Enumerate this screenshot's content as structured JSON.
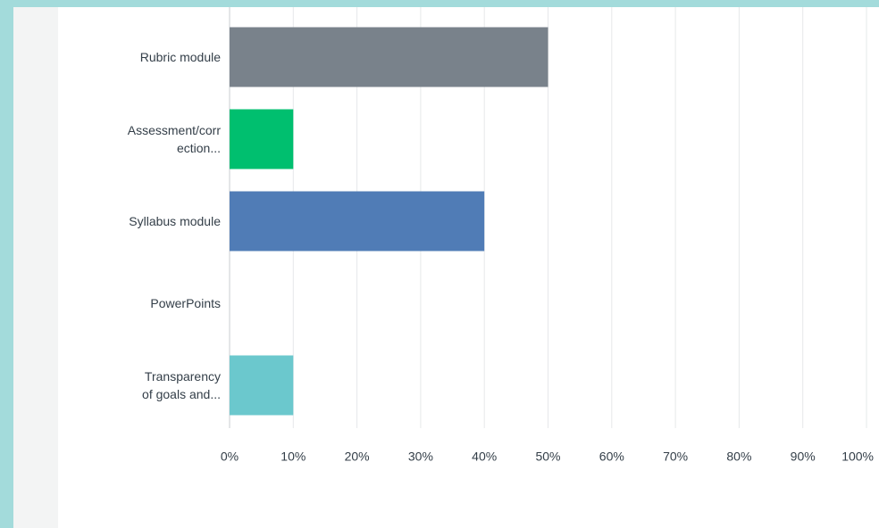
{
  "chart_data": {
    "type": "bar",
    "orientation": "horizontal",
    "categories": [
      "Rubric module",
      "Assessment/corr\nection...",
      "Syllabus module",
      "PowerPoints",
      "Transparency\nof goals and..."
    ],
    "values": [
      50,
      10,
      40,
      0,
      10
    ],
    "colors": [
      "#79828b",
      "#00bf6f",
      "#507cb6",
      "#6bc8cd",
      "#6bc8cd"
    ],
    "xlim": [
      0,
      100
    ],
    "xticks": [
      {
        "value": 0,
        "label": "0%"
      },
      {
        "value": 10,
        "label": "10%"
      },
      {
        "value": 20,
        "label": "20%"
      },
      {
        "value": 30,
        "label": "30%"
      },
      {
        "value": 40,
        "label": "40%"
      },
      {
        "value": 50,
        "label": "50%"
      },
      {
        "value": 60,
        "label": "60%"
      },
      {
        "value": 70,
        "label": "70%"
      },
      {
        "value": 80,
        "label": "80%"
      },
      {
        "value": 90,
        "label": "90%"
      },
      {
        "value": 100,
        "label": "100%"
      }
    ],
    "grid": true
  }
}
